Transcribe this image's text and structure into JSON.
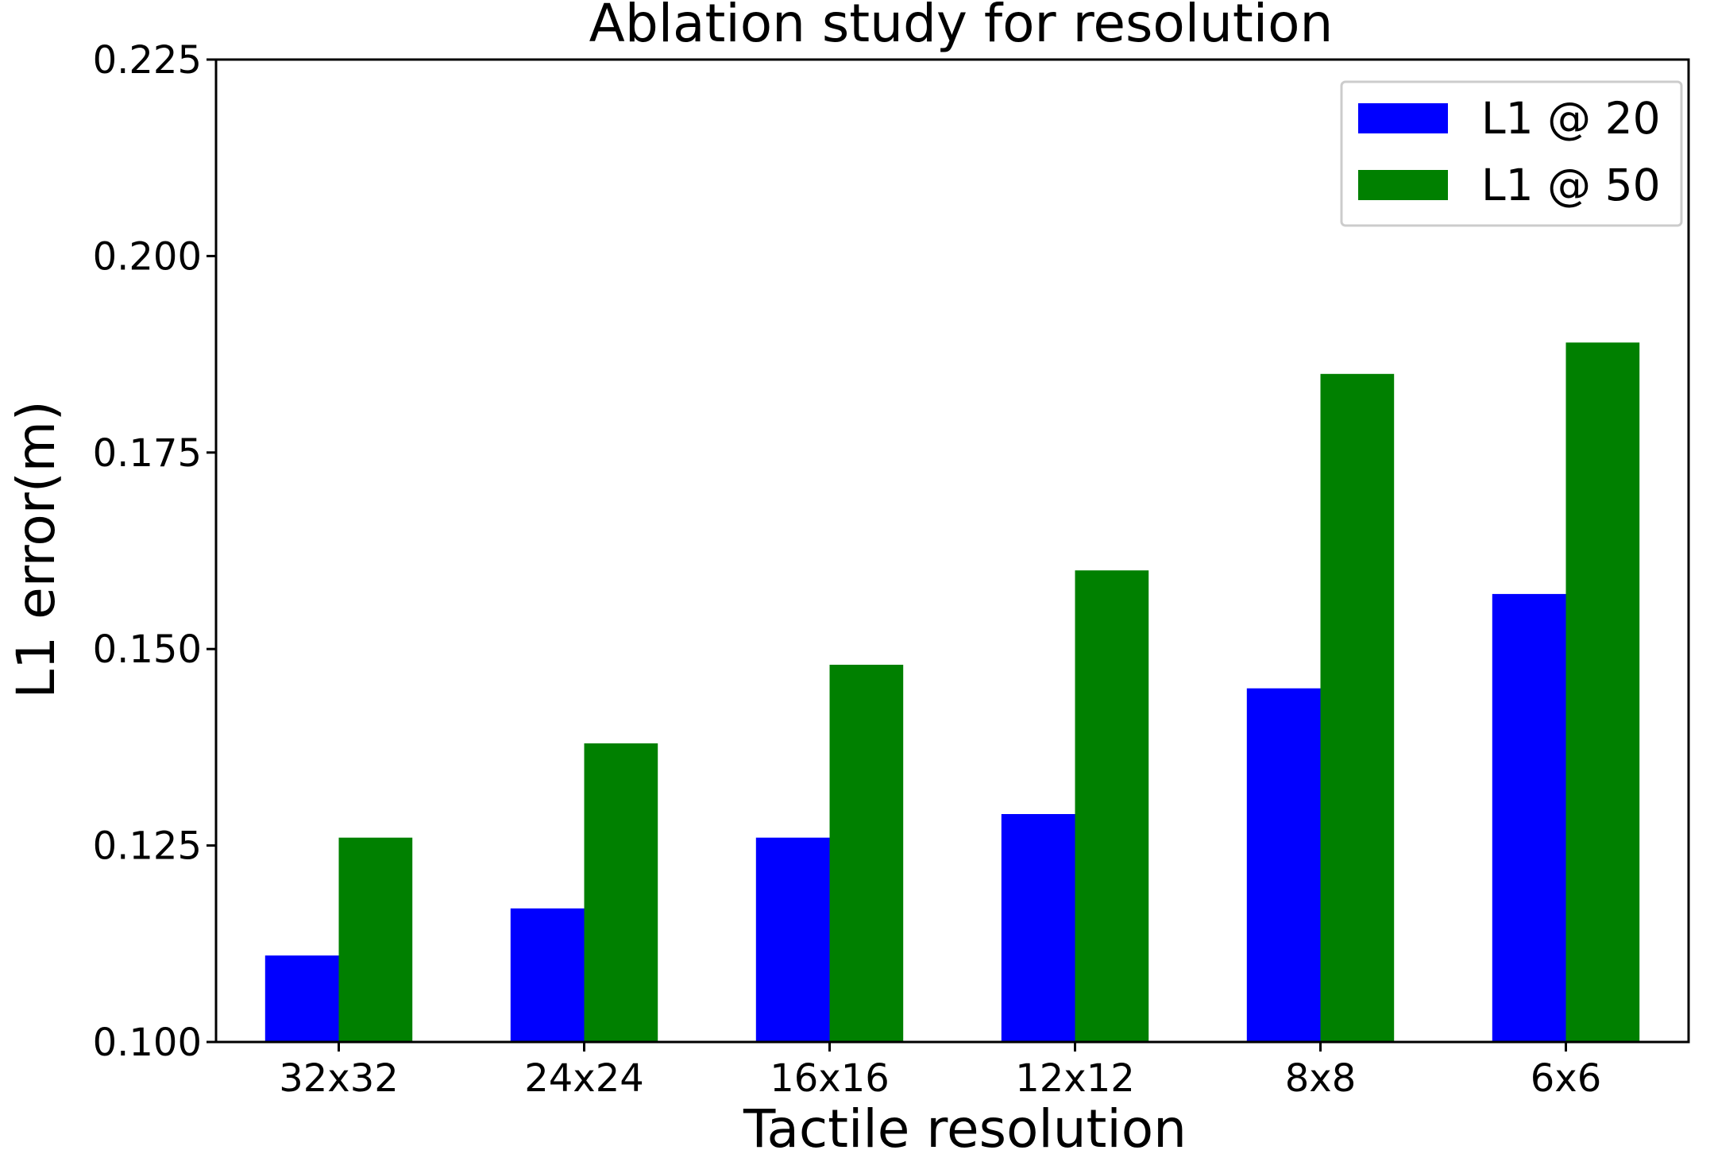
{
  "chart_data": {
    "type": "bar",
    "title": "Ablation study for resolution",
    "xlabel": "Tactile resolution",
    "ylabel": "L1 error(m)",
    "categories": [
      "32x32",
      "24x24",
      "16x16",
      "12x12",
      "8x8",
      "6x6"
    ],
    "ylim": [
      0.1,
      0.225
    ],
    "yticks": [
      0.1,
      0.125,
      0.15,
      0.175,
      0.2,
      0.225
    ],
    "ytick_labels": [
      "0.100",
      "0.125",
      "0.150",
      "0.175",
      "0.200",
      "0.225"
    ],
    "grid": false,
    "legend_position": "top-right",
    "series": [
      {
        "name": "L1 @ 20",
        "color": "#0000ff",
        "values": [
          0.111,
          0.117,
          0.126,
          0.129,
          0.145,
          0.157
        ]
      },
      {
        "name": "L1 @ 50",
        "color": "#008000",
        "values": [
          0.126,
          0.138,
          0.148,
          0.16,
          0.185,
          0.189
        ]
      }
    ]
  }
}
